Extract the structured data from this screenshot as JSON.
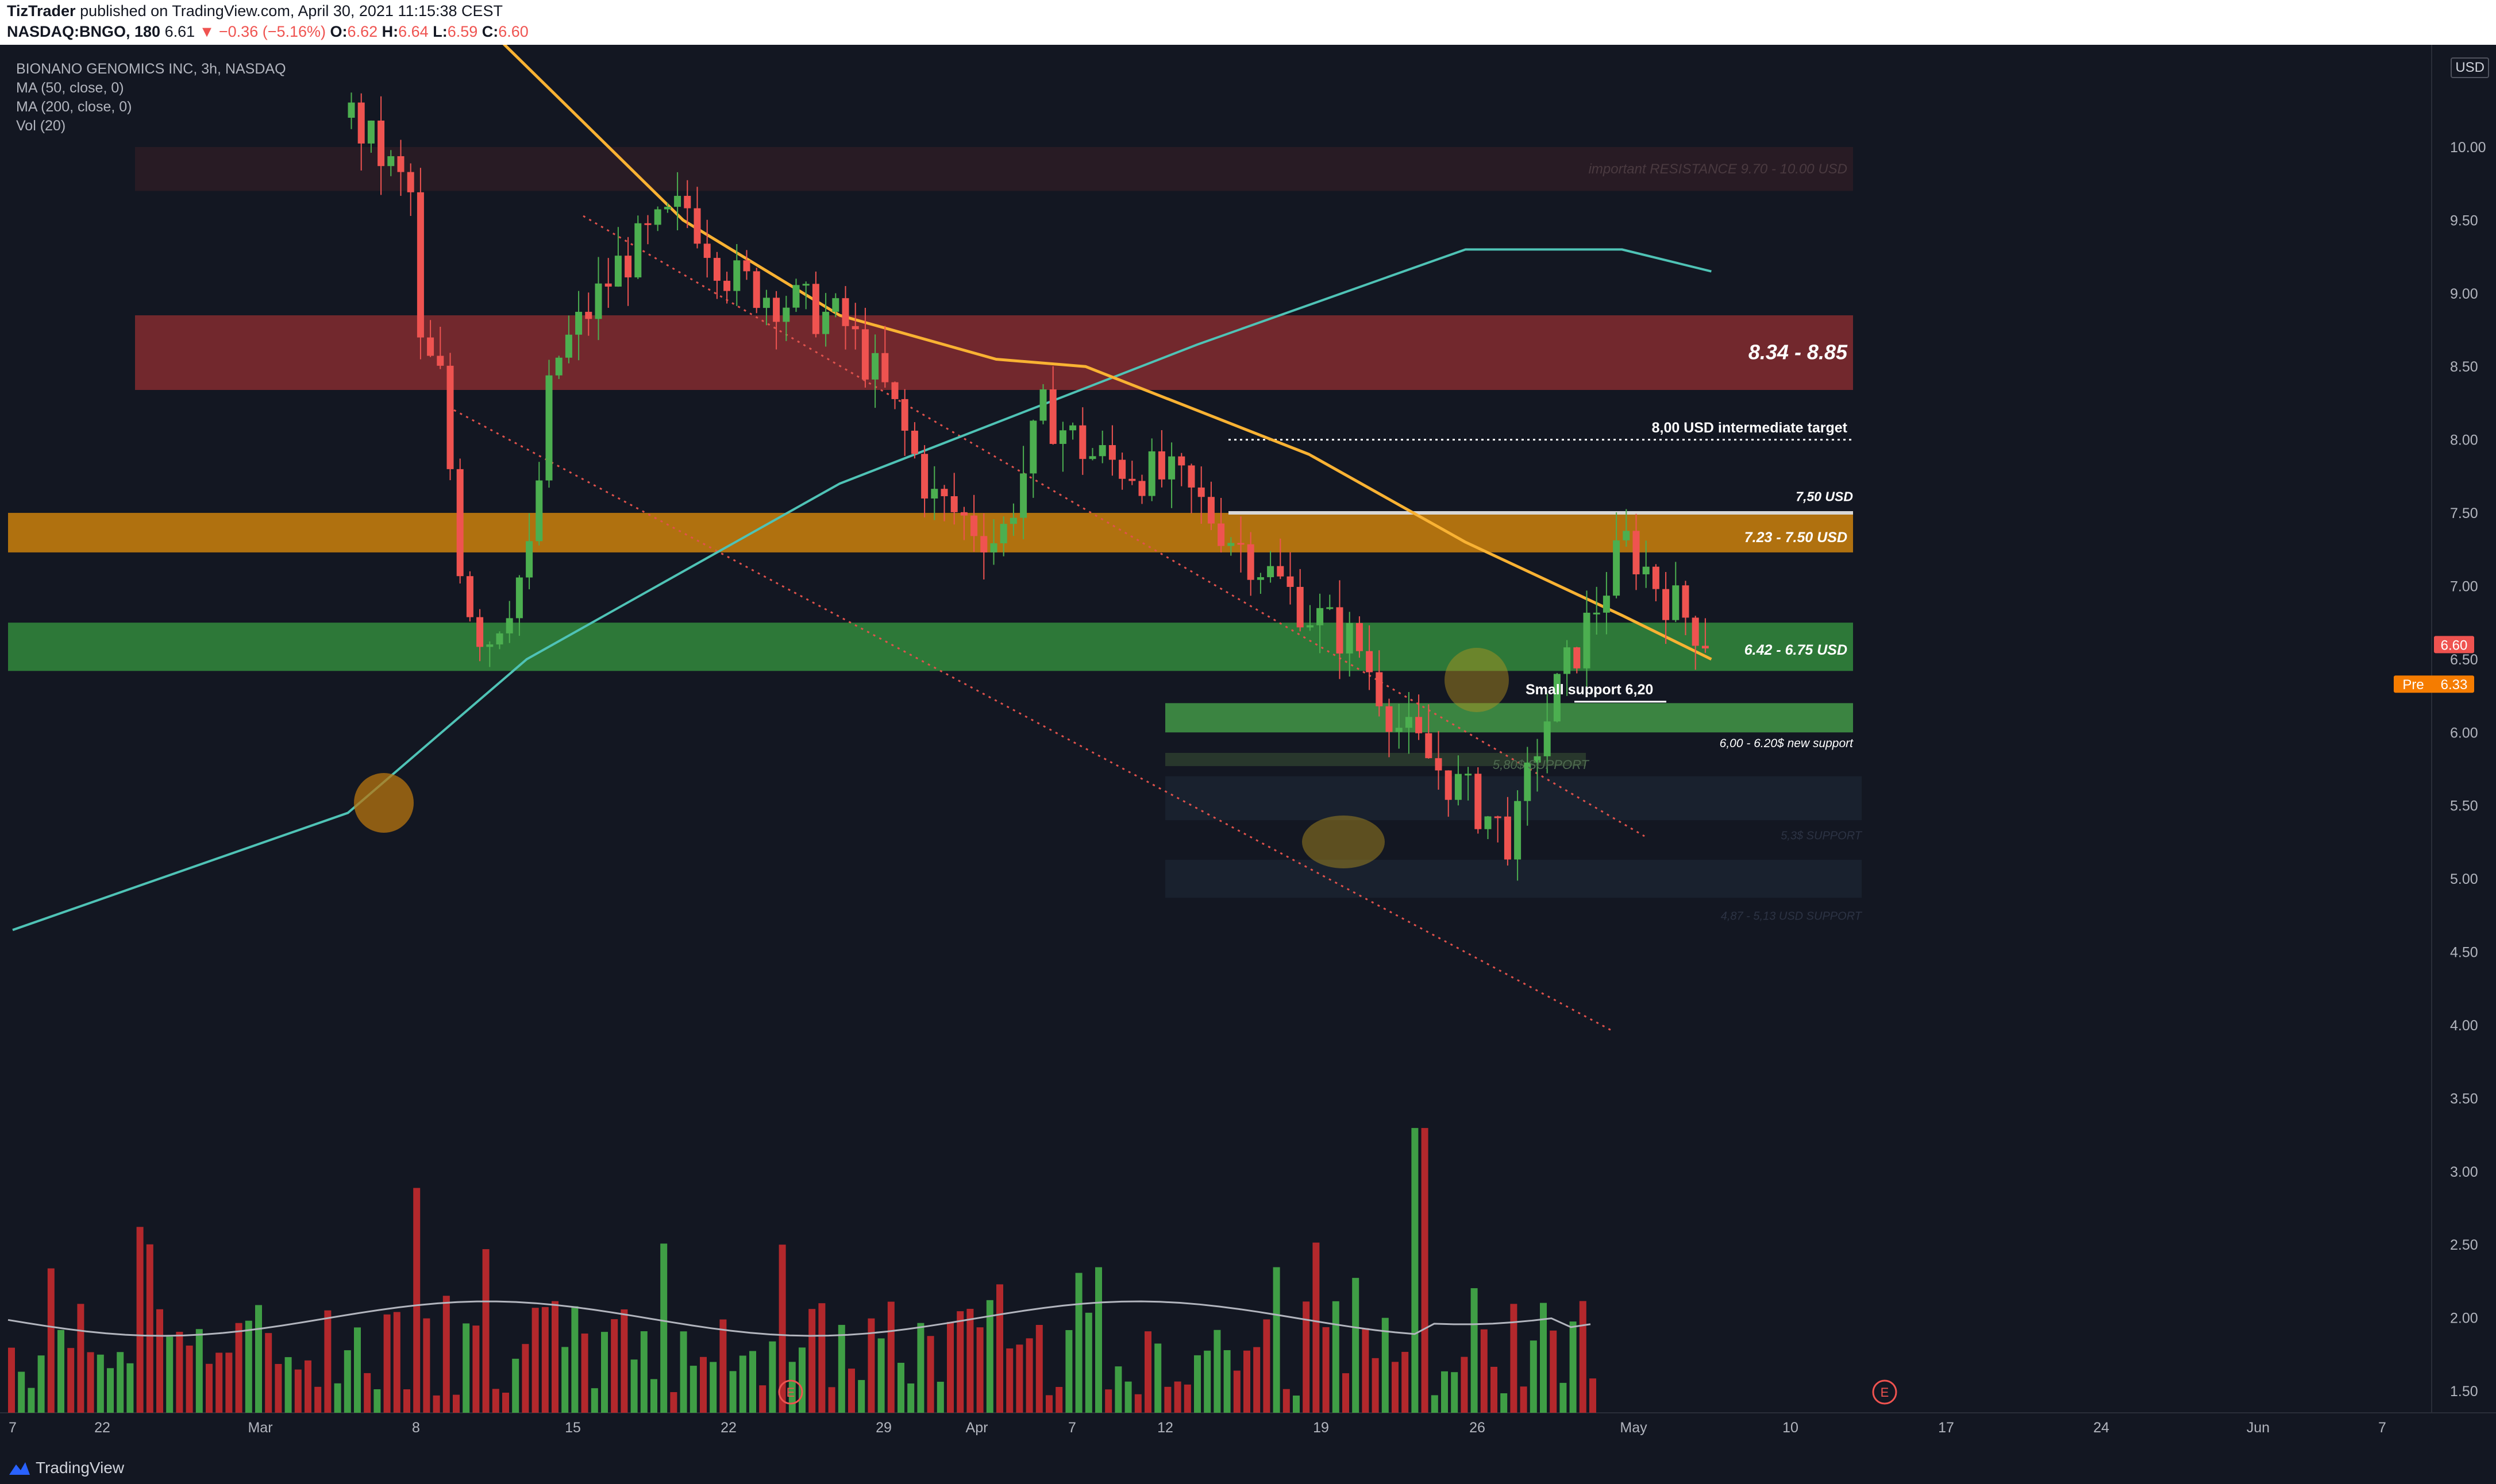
{
  "header": {
    "publisher": "TizTrader",
    "published_text": "published on TradingView.com, April 30, 2021 11:15:38 CEST",
    "symbol": "NASDAQ:BNGO, 180",
    "last": "6.61",
    "change": "−0.36 (−5.16%)",
    "o_label": "O:",
    "o_value": "6.62",
    "h_label": "H:",
    "h_value": "6.64",
    "l_label": "L:",
    "l_value": "6.59",
    "c_label": "C:",
    "c_value": "6.60"
  },
  "legend": {
    "title": "BIONANO GENOMICS INC, 3h, NASDAQ",
    "ma50": "MA (50, close, 0)",
    "ma200": "MA (200, close, 0)",
    "vol": "Vol (20)"
  },
  "currency_badge": "USD",
  "price_badges": {
    "last": "6.60",
    "pre_label": "Pre",
    "pre_value": "6.33"
  },
  "annotations": {
    "zone_top": "important RESISTANCE 9.70 - 10.00 USD",
    "zone_red": "8.34 - 8.85",
    "target": "8,00 USD intermediate target",
    "line_750": "7,50 USD",
    "zone_orange": "7.23 - 7.50 USD",
    "zone_green": "6.42 - 6.75 USD",
    "small_support": "Small support 6,20",
    "new_support": "6,00 - 6.20$ new support",
    "support_580": "5,80$ SUPPORT",
    "support_5": "5,3$ SUPPORT",
    "support_4": "4,87 - 5,13 USD SUPPORT",
    "earnings": "E"
  },
  "colors": {
    "bg": "#131722",
    "up": "#4caf50",
    "down": "#ef5350",
    "ma50": "#f9b233",
    "ma200": "#4fc3b6",
    "zone_red": "#7d2a2f",
    "zone_orange": "#b8760f",
    "zone_green": "#2e7d3a"
  },
  "footer": {
    "brand": "TradingView"
  },
  "chart_data": {
    "type": "candlestick",
    "y_axis": {
      "ticks": [
        "10.00",
        "9.50",
        "9.00",
        "8.50",
        "8.00",
        "7.50",
        "7.00",
        "6.50",
        "6.00",
        "5.50",
        "5.00",
        "4.50",
        "4.00",
        "3.50",
        "3.00",
        "2.50",
        "2.00",
        "1.50"
      ]
    },
    "x_axis": {
      "ticks": [
        "7",
        "22",
        "Mar",
        "8",
        "15",
        "22",
        "29",
        "Apr",
        "7",
        "12",
        "19",
        "26",
        "May",
        "10",
        "17",
        "24",
        "Jun",
        "7"
      ]
    },
    "ylim": [
      1.35,
      10.95
    ],
    "levels": {
      "resistance_top": [
        9.7,
        10.0
      ],
      "zone_red": [
        8.34,
        8.85
      ],
      "target": 8.0,
      "line_750": 7.5,
      "zone_orange": [
        7.23,
        7.5
      ],
      "zone_green": [
        6.42,
        6.75
      ],
      "new_support": [
        6.0,
        6.2
      ]
    },
    "price_path": [
      [
        "Feb 22",
        10.2
      ],
      [
        "Feb 25",
        9.6
      ],
      [
        "Mar 1",
        9.1
      ],
      [
        "Mar 4",
        8.4
      ],
      [
        "Mar 5",
        7.0
      ],
      [
        "Mar 6",
        6.6
      ],
      [
        "Mar 8",
        7.2
      ],
      [
        "Mar 9",
        8.5
      ],
      [
        "Mar 12",
        9.2
      ],
      [
        "Mar 15",
        9.6
      ],
      [
        "Mar 17",
        9.1
      ],
      [
        "Mar 22",
        8.8
      ],
      [
        "Mar 24",
        8.3
      ],
      [
        "Mar 26",
        7.6
      ],
      [
        "Mar 29",
        7.3
      ],
      [
        "Mar 31",
        8.2
      ],
      [
        "Apr 2",
        7.9
      ],
      [
        "Apr 6",
        7.7
      ],
      [
        "Apr 8",
        7.4
      ],
      [
        "Apr 12",
        6.8
      ],
      [
        "Apr 14",
        6.6
      ],
      [
        "Apr 16",
        6.0
      ],
      [
        "Apr 19",
        5.55
      ],
      [
        "Apr 21",
        5.25
      ],
      [
        "Apr 22",
        5.9
      ],
      [
        "Apr 23",
        6.3
      ],
      [
        "Apr 26",
        7.3
      ],
      [
        "Apr 27",
        7.1
      ],
      [
        "Apr 28",
        6.9
      ],
      [
        "Apr 30",
        6.6
      ]
    ],
    "ma50_path": [
      [
        "Mar 5",
        11.0
      ],
      [
        "Mar 15",
        9.5
      ],
      [
        "Mar 22",
        8.85
      ],
      [
        "Mar 29",
        8.55
      ],
      [
        "Apr 2",
        8.5
      ],
      [
        "Apr 12",
        7.9
      ],
      [
        "Apr 19",
        7.3
      ],
      [
        "Apr 26",
        6.8
      ],
      [
        "Apr 30",
        6.5
      ]
    ],
    "ma200_path": [
      [
        "Feb 7",
        4.65
      ],
      [
        "Feb 22",
        5.45
      ],
      [
        "Mar 8",
        6.5
      ],
      [
        "Mar 22",
        7.7
      ],
      [
        "Apr 7",
        8.65
      ],
      [
        "Apr 19",
        9.3
      ],
      [
        "Apr 26",
        9.3
      ],
      [
        "Apr 30",
        9.15
      ]
    ],
    "volume_max": 3.7
  }
}
